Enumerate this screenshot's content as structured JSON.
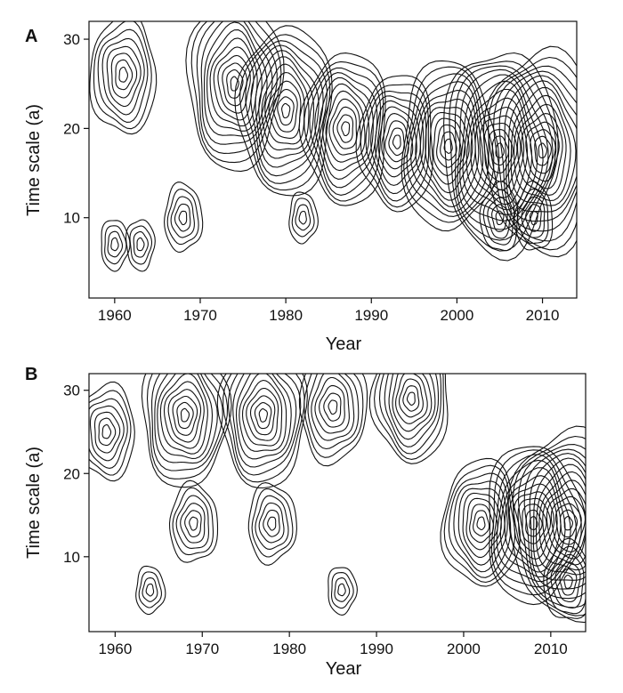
{
  "chart_data": [
    {
      "type": "contour",
      "panel_label": "A",
      "xlabel": "Year",
      "ylabel": "Time scale (a)",
      "xlim": [
        1957,
        2014
      ],
      "ylim": [
        1,
        32
      ],
      "x_ticks": [
        1960,
        1970,
        1980,
        1990,
        2000,
        2010
      ],
      "y_ticks": [
        10,
        20,
        30
      ],
      "x_tick_labels": [
        "1960",
        "1970",
        "1980",
        "1990",
        "2000",
        "2010"
      ],
      "y_tick_labels": [
        "10",
        "20",
        "30"
      ],
      "grid": false,
      "centers": [
        {
          "x": 1961,
          "y": 26,
          "r": 7
        },
        {
          "x": 1974,
          "y": 25,
          "r": 10
        },
        {
          "x": 1980,
          "y": 22,
          "r": 10
        },
        {
          "x": 1987,
          "y": 20,
          "r": 9
        },
        {
          "x": 1993,
          "y": 18.5,
          "r": 8
        },
        {
          "x": 1999,
          "y": 18,
          "r": 10
        },
        {
          "x": 2005,
          "y": 17.5,
          "r": 12
        },
        {
          "x": 2010,
          "y": 17.5,
          "r": 12
        },
        {
          "x": 2005,
          "y": 10,
          "r": 4
        },
        {
          "x": 2009,
          "y": 10,
          "r": 4
        },
        {
          "x": 1968,
          "y": 10,
          "r": 4
        },
        {
          "x": 1982,
          "y": 10,
          "r": 3
        },
        {
          "x": 1960,
          "y": 7,
          "r": 3
        },
        {
          "x": 1963,
          "y": 7,
          "r": 3
        }
      ]
    },
    {
      "type": "contour",
      "panel_label": "B",
      "xlabel": "Year",
      "ylabel": "Time scale (a)",
      "xlim": [
        1957,
        2014
      ],
      "ylim": [
        1,
        32
      ],
      "x_ticks": [
        1960,
        1970,
        1980,
        1990,
        2000,
        2010
      ],
      "y_ticks": [
        10,
        20,
        30
      ],
      "x_tick_labels": [
        "1960",
        "1970",
        "1980",
        "1990",
        "2000",
        "2010"
      ],
      "y_tick_labels": [
        "10",
        "20",
        "30"
      ],
      "grid": false,
      "centers": [
        {
          "x": 1959,
          "y": 25,
          "r": 6
        },
        {
          "x": 1968,
          "y": 27,
          "r": 9
        },
        {
          "x": 1977,
          "y": 27,
          "r": 9
        },
        {
          "x": 1985,
          "y": 28,
          "r": 7
        },
        {
          "x": 1994,
          "y": 29,
          "r": 8
        },
        {
          "x": 2002,
          "y": 14,
          "r": 8
        },
        {
          "x": 2008,
          "y": 14,
          "r": 10
        },
        {
          "x": 2012,
          "y": 14,
          "r": 12
        },
        {
          "x": 2012,
          "y": 7,
          "r": 5
        },
        {
          "x": 1969,
          "y": 14,
          "r": 5
        },
        {
          "x": 1978,
          "y": 14,
          "r": 5
        },
        {
          "x": 1964,
          "y": 6,
          "r": 3
        },
        {
          "x": 1986,
          "y": 6,
          "r": 3
        }
      ]
    }
  ]
}
